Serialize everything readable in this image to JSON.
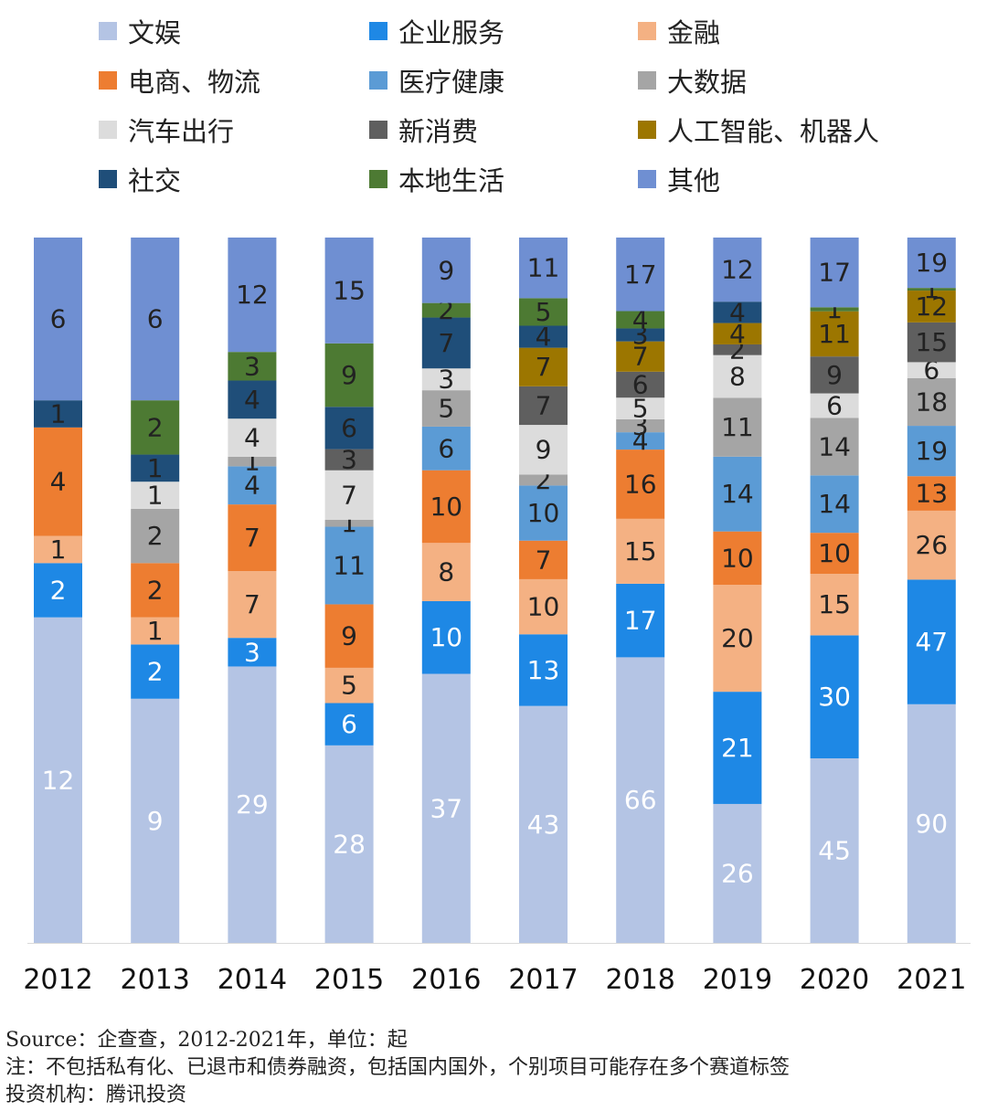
{
  "chart_data": {
    "type": "bar",
    "stacked": true,
    "categories": [
      "2012",
      "2013",
      "2014",
      "2015",
      "2016",
      "2017",
      "2018",
      "2019",
      "2020",
      "2021"
    ],
    "series": [
      {
        "name": "文娱",
        "color": "#b4c4e4",
        "values": [
          12,
          9,
          29,
          28,
          37,
          43,
          66,
          26,
          45,
          90
        ]
      },
      {
        "name": "企业服务",
        "color": "#1e88e5",
        "values": [
          2,
          2,
          3,
          6,
          10,
          13,
          17,
          21,
          30,
          47
        ]
      },
      {
        "name": "金融",
        "color": "#f4b183",
        "values": [
          1,
          1,
          7,
          5,
          8,
          10,
          15,
          20,
          15,
          26
        ]
      },
      {
        "name": "电商、物流",
        "color": "#ed7d31",
        "values": [
          4,
          2,
          7,
          9,
          10,
          7,
          16,
          10,
          10,
          13
        ]
      },
      {
        "name": "医疗健康",
        "color": "#5b9bd5",
        "values": [
          0,
          0,
          4,
          11,
          6,
          10,
          4,
          14,
          14,
          19
        ]
      },
      {
        "name": "大数据",
        "color": "#a5a5a5",
        "values": [
          0,
          2,
          1,
          1,
          5,
          2,
          3,
          11,
          14,
          18
        ]
      },
      {
        "name": "汽车出行",
        "color": "#dcdcdc",
        "values": [
          0,
          1,
          4,
          7,
          3,
          9,
          5,
          8,
          6,
          6
        ]
      },
      {
        "name": "新消费",
        "color": "#5f5f5f",
        "values": [
          0,
          0,
          0,
          3,
          0,
          7,
          6,
          2,
          9,
          15
        ]
      },
      {
        "name": "人工智能、机器人",
        "color": "#9c7600",
        "values": [
          0,
          0,
          0,
          0,
          0,
          7,
          7,
          4,
          11,
          12
        ]
      },
      {
        "name": "社交",
        "color": "#1f4e79",
        "values": [
          1,
          1,
          4,
          6,
          7,
          4,
          3,
          4,
          0,
          0
        ]
      },
      {
        "name": "本地生活",
        "color": "#4d7a33",
        "values": [
          0,
          2,
          3,
          9,
          2,
          5,
          4,
          0,
          1,
          1
        ]
      },
      {
        "name": "其他",
        "color": "#6f8fd2",
        "values": [
          6,
          6,
          12,
          15,
          9,
          11,
          17,
          12,
          17,
          19
        ]
      }
    ],
    "light_label_series": [
      "文娱",
      "企业服务"
    ],
    "legend_placement": "top",
    "grid": false
  },
  "notes": [
    "Source：企查查，2012-2021年，单位：起",
    "注：不包括私有化、已退市和债券融资，包括国内国外，个别项目可能存在多个赛道标签",
    "投资机构：腾讯投资"
  ]
}
